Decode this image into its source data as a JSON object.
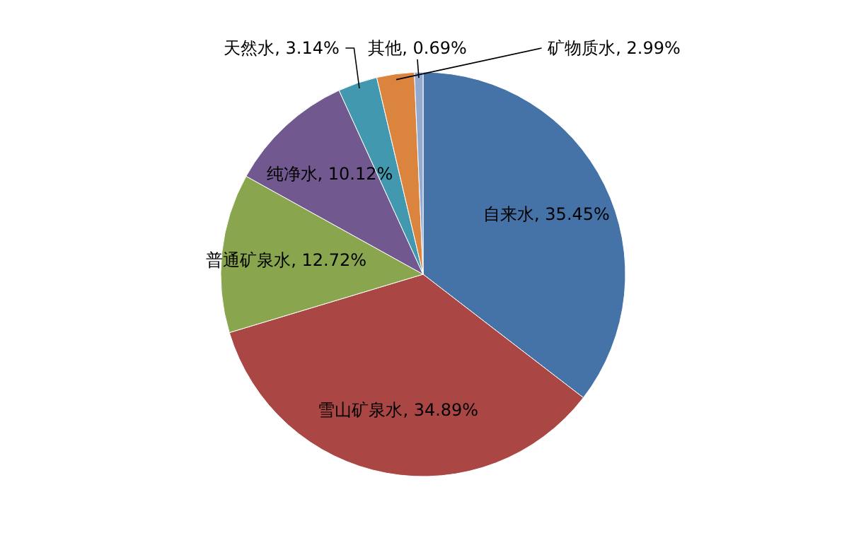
{
  "chart_data": {
    "type": "pie",
    "categories": [
      "自来水",
      "雪山矿泉水",
      "普通矿泉水",
      "纯净水",
      "天然水",
      "矿物质水",
      "其他"
    ],
    "values": [
      35.45,
      34.89,
      12.72,
      10.12,
      3.14,
      2.99,
      0.69
    ],
    "value_labels": [
      "35.45%",
      "34.89%",
      "12.72%",
      "10.12%",
      "3.14%",
      "2.99%",
      "0.69%"
    ],
    "colors": [
      "#4572a7",
      "#aa4643",
      "#89a54e",
      "#71588f",
      "#4198af",
      "#db843d",
      "#93a9cf"
    ]
  }
}
